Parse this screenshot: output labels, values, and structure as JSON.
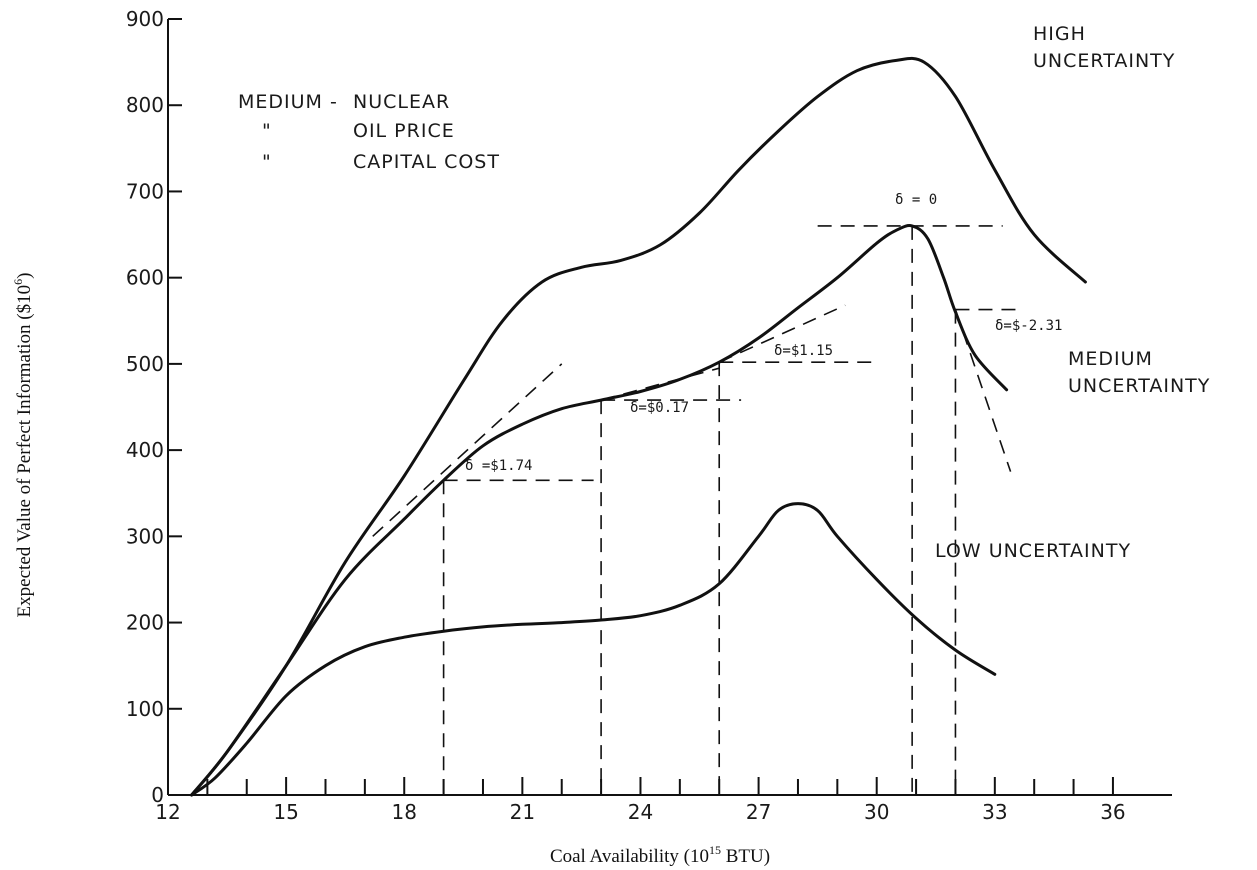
{
  "chart_data": {
    "type": "line",
    "xlabel": "Coal Availability (10",
    "xlabel_sup": "15",
    "xlabel_tail": " BTU)",
    "ylabel": "Expected Value of  Perfect Information ($10",
    "ylabel_sup": "6",
    "ylabel_tail": ")",
    "xlim": [
      12,
      37.5
    ],
    "ylim": [
      0,
      900
    ],
    "x_ticks": [
      12,
      15,
      18,
      21,
      24,
      27,
      30,
      33,
      36
    ],
    "x_minor_ticks": [
      13,
      14,
      16,
      17,
      19,
      20,
      22,
      23,
      25,
      26,
      28,
      29,
      31,
      32,
      34,
      35
    ],
    "y_ticks": [
      0,
      100,
      200,
      300,
      400,
      500,
      600,
      700,
      800,
      900
    ],
    "grid": false,
    "legend_note": [
      "MEDIUM -",
      "NUCLEAR",
      "\"",
      "OIL PRICE",
      "\"",
      "CAPITAL COST"
    ],
    "series": [
      {
        "name": "HIGH UNCERTAINTY",
        "label_lines": [
          "HIGH",
          "UNCERTAINTY"
        ],
        "x": [
          12.6,
          13.5,
          15,
          16.5,
          18,
          19.5,
          20.5,
          21.5,
          22.5,
          23.5,
          24.5,
          25.5,
          26.5,
          27.5,
          28.5,
          29.5,
          30.5,
          31.2,
          32,
          33,
          34,
          35.3
        ],
        "values": [
          0,
          50,
          150,
          270,
          370,
          480,
          550,
          595,
          612,
          620,
          638,
          675,
          725,
          770,
          810,
          840,
          852,
          850,
          810,
          725,
          650,
          595
        ]
      },
      {
        "name": "MEDIUM UNCERTAINTY",
        "label_lines": [
          "MEDIUM",
          "UNCERTAINTY"
        ],
        "x": [
          12.6,
          13.5,
          15,
          16.5,
          18,
          19,
          20,
          21,
          22,
          23,
          24,
          25,
          26,
          27,
          28,
          29,
          30,
          30.5,
          30.9,
          31.3,
          31.7,
          32,
          32.5,
          33.3
        ],
        "values": [
          0,
          50,
          150,
          250,
          320,
          365,
          405,
          430,
          448,
          458,
          468,
          482,
          502,
          530,
          565,
          600,
          640,
          655,
          660,
          645,
          600,
          560,
          510,
          470
        ]
      },
      {
        "name": "LOW UNCERTAINTY",
        "label_lines": [
          "LOW  UNCERTAINTY"
        ],
        "x": [
          12.6,
          13.2,
          14,
          15,
          16,
          17,
          18,
          19,
          20,
          21,
          22,
          23,
          24,
          25,
          26,
          27,
          27.5,
          28,
          28.5,
          29,
          30,
          31,
          32,
          33
        ],
        "values": [
          0,
          20,
          60,
          115,
          150,
          172,
          183,
          190,
          195,
          198,
          200,
          203,
          208,
          220,
          245,
          300,
          330,
          338,
          330,
          300,
          250,
          205,
          168,
          140
        ]
      }
    ],
    "annotations": [
      {
        "text": "δ =$1.74",
        "x": 19.0,
        "y": 365,
        "tangent": [
          [
            17.2,
            300
          ],
          [
            22.0,
            500
          ]
        ]
      },
      {
        "text": "δ=$0.17",
        "x": 23.0,
        "y": 458,
        "tangent": [
          [
            23.0,
            458
          ],
          [
            26.0,
            495
          ]
        ]
      },
      {
        "text": "δ=$1.15",
        "x": 26.0,
        "y": 502,
        "tangent": [
          [
            26.0,
            502
          ],
          [
            29.2,
            568
          ]
        ]
      },
      {
        "text": "δ = 0",
        "x": 30.9,
        "y": 660,
        "tangent": [
          [
            28.5,
            660
          ],
          [
            33.2,
            660
          ]
        ]
      },
      {
        "text": "δ=$-2.31",
        "x": 32.0,
        "y": 563,
        "tangent": [
          [
            32.0,
            563
          ],
          [
            33.4,
            375
          ]
        ]
      }
    ]
  }
}
